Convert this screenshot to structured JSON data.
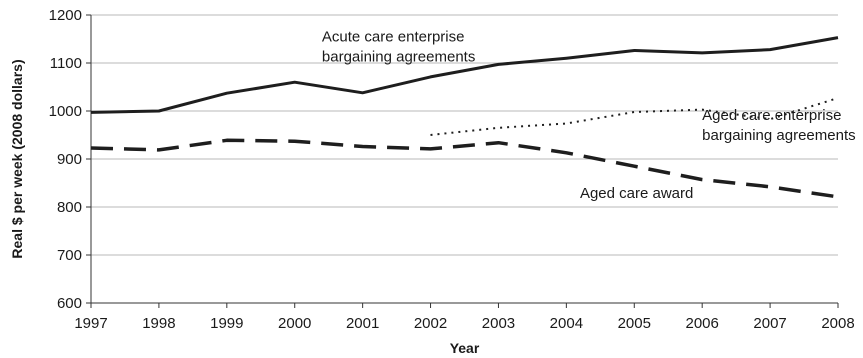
{
  "chart_data": {
    "type": "line",
    "title": "",
    "xlabel": "Year",
    "ylabel": "Real $ per week (2008 dollars)",
    "x": [
      1997,
      1998,
      1999,
      2000,
      2001,
      2002,
      2003,
      2004,
      2005,
      2006,
      2007,
      2008
    ],
    "xlim": [
      1997,
      2008
    ],
    "ylim": [
      600,
      1200
    ],
    "yticks": [
      600,
      700,
      800,
      900,
      1000,
      1100,
      1200
    ],
    "grid": "horizontal",
    "series": [
      {
        "name": "Acute care enterprise bargaining agreements",
        "style": "solid",
        "x": [
          1997,
          1998,
          1999,
          2000,
          2001,
          2002,
          2003,
          2004,
          2005,
          2006,
          2007,
          2008
        ],
        "values": [
          997,
          1000,
          1037,
          1060,
          1038,
          1071,
          1097,
          1110,
          1126,
          1121,
          1128,
          1153
        ]
      },
      {
        "name": "Aged care enterprise bargaining agreements",
        "style": "dotted",
        "x": [
          2002,
          2003,
          2004,
          2005,
          2006,
          2007,
          2008
        ],
        "values": [
          950,
          965,
          974,
          998,
          1003,
          983,
          1027
        ]
      },
      {
        "name": "Aged care award",
        "style": "dashed",
        "x": [
          1997,
          1998,
          1999,
          2000,
          2001,
          2002,
          2003,
          2004,
          2005,
          2006,
          2007,
          2008
        ],
        "values": [
          923,
          919,
          939,
          937,
          926,
          921,
          934,
          913,
          885,
          857,
          842,
          821
        ]
      }
    ],
    "annotations": [
      {
        "lines": [
          "Acute care enterprise",
          "bargaining agreements"
        ],
        "at": [
          2000.4,
          1145
        ]
      },
      {
        "lines": [
          "Aged care enterprise",
          "bargaining agreements"
        ],
        "at": [
          2006,
          981
        ]
      },
      {
        "lines": [
          "Aged care award"
        ],
        "at": [
          2004.2,
          819
        ]
      }
    ],
    "colors": {
      "line": "#1e1e1e",
      "grid": "#b9b9b9",
      "axis": "#333333"
    }
  }
}
